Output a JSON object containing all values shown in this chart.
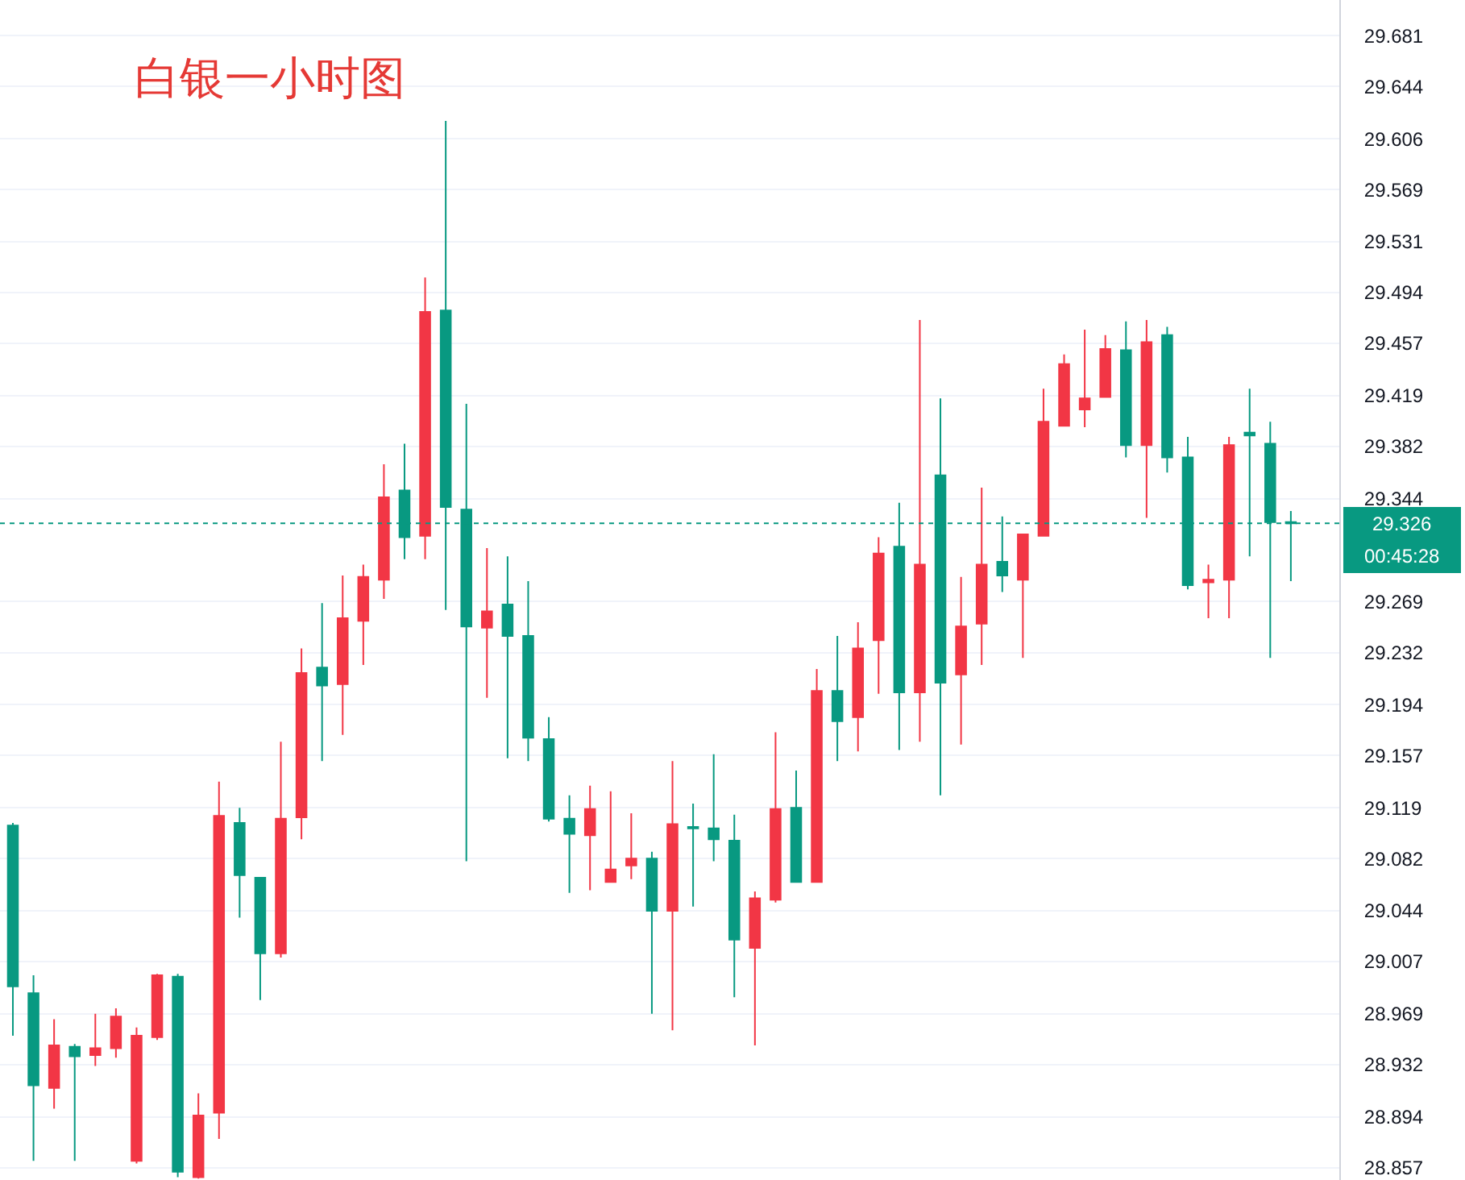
{
  "chart_data": {
    "type": "candlestick",
    "title": "白银一小时图",
    "categories": [
      null,
      null,
      null,
      null,
      null,
      null,
      null,
      null,
      null,
      null,
      null,
      null,
      null,
      null,
      null,
      null,
      null,
      null,
      null,
      null,
      null,
      null,
      null,
      null,
      null,
      null,
      null,
      null,
      null,
      null,
      null,
      null,
      null,
      null,
      null,
      null,
      null,
      null,
      null,
      null,
      null,
      null,
      null,
      null,
      null,
      null,
      null,
      null,
      null,
      null,
      null,
      null,
      null,
      null,
      null,
      null,
      null,
      null,
      null,
      null,
      null,
      null,
      null
    ],
    "ohlc": [
      [
        29.106,
        29.108,
        28.953,
        28.989
      ],
      [
        28.984,
        28.997,
        28.862,
        28.917
      ],
      [
        28.915,
        28.965,
        28.9,
        28.946
      ],
      [
        28.945,
        28.947,
        28.862,
        28.938
      ],
      [
        28.939,
        28.969,
        28.931,
        28.944
      ],
      [
        28.944,
        28.973,
        28.937,
        28.967
      ],
      [
        28.862,
        28.959,
        28.86,
        28.953
      ],
      [
        28.952,
        28.998,
        28.95,
        28.997
      ],
      [
        28.996,
        28.998,
        28.85,
        28.854
      ],
      [
        28.85,
        28.911,
        28.849,
        28.895
      ],
      [
        28.897,
        29.138,
        28.878,
        29.113
      ],
      [
        29.108,
        29.119,
        29.039,
        29.07
      ],
      [
        29.068,
        29.068,
        28.979,
        29.013
      ],
      [
        29.013,
        29.167,
        29.01,
        29.111
      ],
      [
        29.112,
        29.235,
        29.096,
        29.217
      ],
      [
        29.221,
        29.268,
        29.153,
        29.208
      ],
      [
        29.209,
        29.288,
        29.172,
        29.257
      ],
      [
        29.255,
        29.296,
        29.223,
        29.287
      ],
      [
        29.285,
        29.369,
        29.271,
        29.345
      ],
      [
        29.35,
        29.384,
        29.3,
        29.316
      ],
      [
        29.317,
        29.505,
        29.3,
        29.48
      ],
      [
        29.481,
        29.619,
        29.263,
        29.338
      ],
      [
        29.336,
        29.413,
        29.08,
        29.251
      ],
      [
        29.25,
        29.308,
        29.199,
        29.262
      ],
      [
        29.267,
        29.302,
        29.155,
        29.244
      ],
      [
        29.244,
        29.284,
        29.153,
        29.17
      ],
      [
        29.169,
        29.185,
        29.109,
        29.111
      ],
      [
        29.111,
        29.128,
        29.057,
        29.1
      ],
      [
        29.099,
        29.135,
        29.059,
        29.118
      ],
      [
        29.065,
        29.131,
        29.065,
        29.074
      ],
      [
        29.077,
        29.115,
        29.067,
        29.082
      ],
      [
        29.082,
        29.087,
        28.969,
        29.044
      ],
      [
        29.044,
        29.153,
        28.957,
        29.107
      ],
      [
        29.105,
        29.122,
        29.047,
        29.104
      ],
      [
        29.104,
        29.158,
        29.08,
        29.096
      ],
      [
        29.095,
        29.114,
        28.981,
        29.023
      ],
      [
        29.017,
        29.058,
        28.946,
        29.053
      ],
      [
        29.052,
        29.174,
        29.05,
        29.118
      ],
      [
        29.119,
        29.146,
        29.065,
        29.065
      ],
      [
        29.065,
        29.22,
        29.065,
        29.204
      ],
      [
        29.204,
        29.244,
        29.153,
        29.182
      ],
      [
        29.185,
        29.254,
        29.16,
        29.235
      ],
      [
        29.241,
        29.316,
        29.202,
        29.304
      ],
      [
        29.309,
        29.341,
        29.161,
        29.203
      ],
      [
        29.203,
        29.474,
        29.167,
        29.296
      ],
      [
        29.361,
        29.417,
        29.128,
        29.21
      ],
      [
        29.216,
        29.287,
        29.165,
        29.251
      ],
      [
        29.253,
        29.352,
        29.223,
        29.296
      ],
      [
        29.298,
        29.331,
        29.276,
        29.288
      ],
      [
        29.285,
        29.318,
        29.228,
        29.318
      ],
      [
        29.317,
        29.424,
        29.317,
        29.4
      ],
      [
        29.397,
        29.449,
        29.397,
        29.442
      ],
      [
        29.409,
        29.467,
        29.396,
        29.417
      ],
      [
        29.418,
        29.463,
        29.418,
        29.453
      ],
      [
        29.452,
        29.473,
        29.374,
        29.383
      ],
      [
        29.383,
        29.474,
        29.33,
        29.458
      ],
      [
        29.463,
        29.469,
        29.363,
        29.374
      ],
      [
        29.374,
        29.389,
        29.278,
        29.281
      ],
      [
        29.283,
        29.296,
        29.257,
        29.285
      ],
      [
        29.285,
        29.389,
        29.257,
        29.383
      ],
      [
        29.392,
        29.424,
        29.302,
        29.39
      ],
      [
        29.384,
        29.4,
        29.228,
        29.327
      ],
      [
        29.327,
        29.335,
        29.284,
        29.326
      ]
    ],
    "colors": [
      "#089981",
      "#089981",
      "#f23645",
      "#089981",
      "#f23645",
      "#f23645",
      "#f23645",
      "#f23645",
      "#089981",
      "#f23645",
      "#f23645",
      "#089981",
      "#089981",
      "#f23645",
      "#f23645",
      "#089981",
      "#f23645",
      "#f23645",
      "#f23645",
      "#089981",
      "#f23645",
      "#089981",
      "#089981",
      "#f23645",
      "#089981",
      "#089981",
      "#089981",
      "#089981",
      "#f23645",
      "#f23645",
      "#f23645",
      "#089981",
      "#f23645",
      "#089981",
      "#089981",
      "#089981",
      "#f23645",
      "#f23645",
      "#089981",
      "#f23645",
      "#089981",
      "#f23645",
      "#f23645",
      "#089981",
      "#f23645",
      "#089981",
      "#f23645",
      "#f23645",
      "#089981",
      "#f23645",
      "#f23645",
      "#f23645",
      "#f23645",
      "#f23645",
      "#089981",
      "#f23645",
      "#089981",
      "#089981",
      "#f23645",
      "#f23645",
      "#089981",
      "#089981",
      "#089981"
    ],
    "ylim": [
      28.848,
      29.707
    ],
    "yticks": [
      29.681,
      29.644,
      29.606,
      29.569,
      29.531,
      29.494,
      29.457,
      29.419,
      29.382,
      29.344,
      29.269,
      29.232,
      29.194,
      29.157,
      29.119,
      29.082,
      29.044,
      29.007,
      28.969,
      28.932,
      28.894,
      28.857
    ],
    "tick_labels": "y",
    "grid": "y",
    "ref_lines": [
      {
        "axis": "y",
        "value": 29.326,
        "label": "29.326",
        "color": "#089981",
        "line_style": "dotted"
      }
    ],
    "annotations": [
      "00:45:28"
    ]
  }
}
